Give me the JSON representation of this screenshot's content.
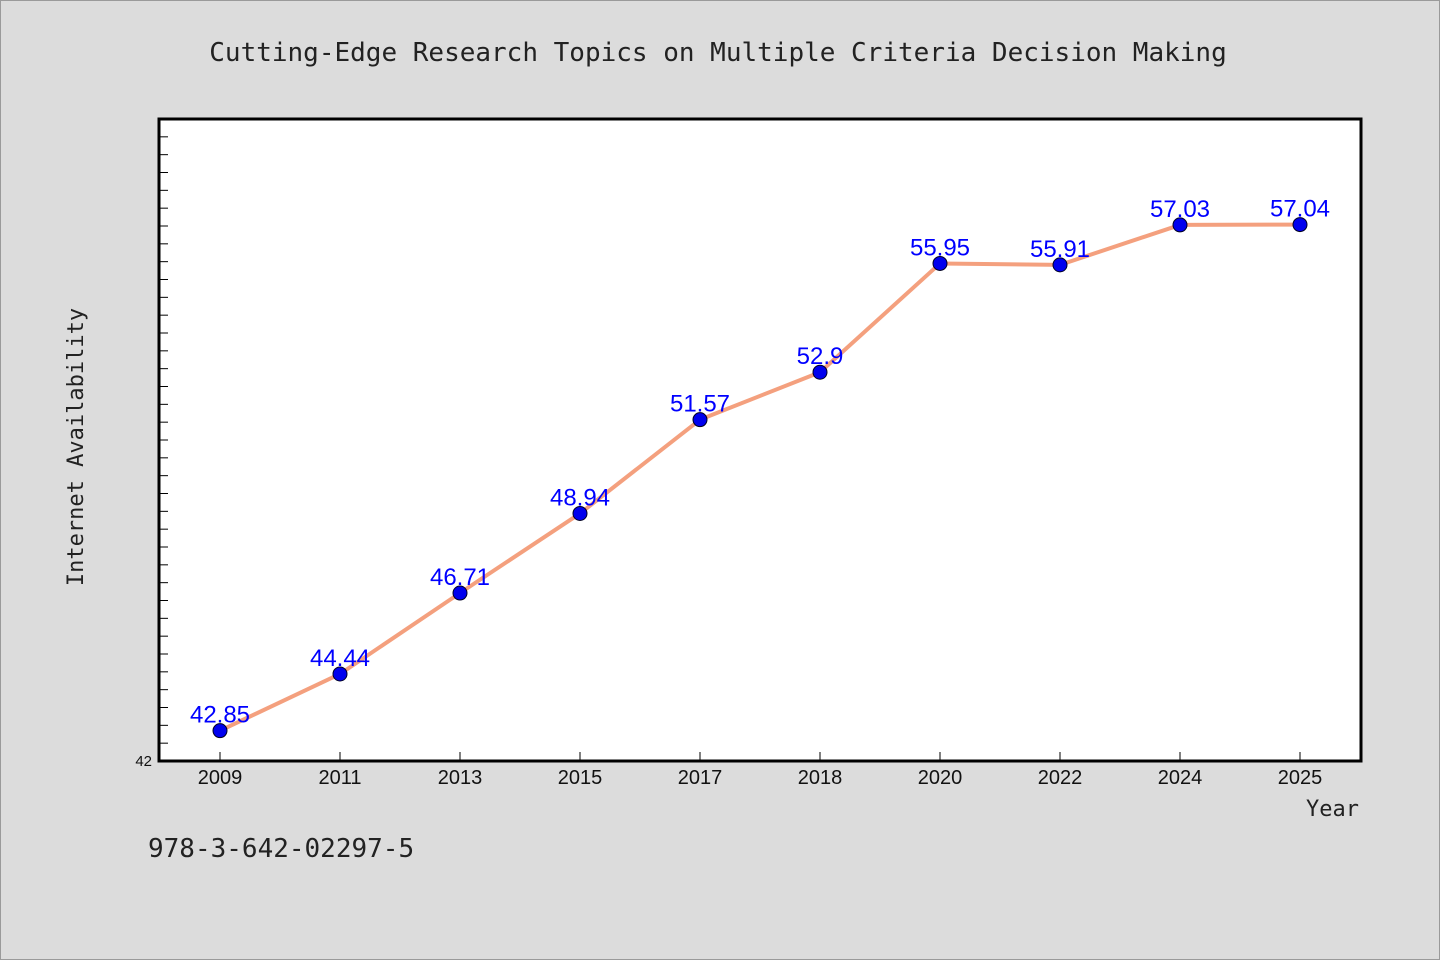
{
  "chart_data": {
    "type": "line",
    "title": "Cutting-Edge Research Topics on Multiple Criteria Decision Making",
    "xlabel": "Year",
    "ylabel": "Internet Availability",
    "categories": [
      "2009",
      "2011",
      "2013",
      "2015",
      "2017",
      "2018",
      "2020",
      "2022",
      "2024",
      "2025"
    ],
    "series": [
      {
        "values": [
          42.85,
          44.44,
          46.71,
          48.94,
          51.57,
          52.9,
          55.95,
          55.91,
          57.03,
          57.04
        ],
        "labels": [
          "42.85",
          "44.44",
          "46.71",
          "48.94",
          "51.57",
          "52.9",
          "55.95",
          "55.91",
          "57.03",
          "57.04"
        ]
      }
    ],
    "ylim": [
      42,
      60
    ],
    "y_tick_labels": [
      "42"
    ],
    "grid": false,
    "colors": {
      "line": "#f4a07e",
      "marker": "#0000ee",
      "label": "#0000ff",
      "plot_bg": "#ffffff",
      "page_bg": "#dcdcdc"
    }
  },
  "footer": {
    "code": "978-3-642-02297-5"
  }
}
